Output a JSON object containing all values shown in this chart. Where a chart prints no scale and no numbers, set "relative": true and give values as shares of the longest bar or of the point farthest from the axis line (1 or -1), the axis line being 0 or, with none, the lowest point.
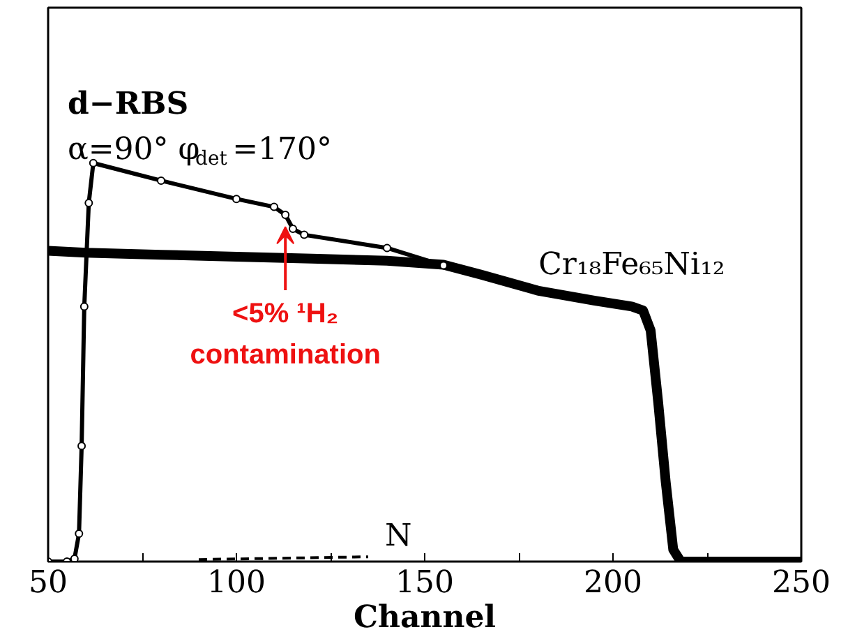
{
  "chart_data": {
    "type": "line",
    "relative": true,
    "xlabel": "Channel",
    "xlim": [
      50,
      250
    ],
    "xticks": [
      50,
      {
        "value": 75,
        "label": null
      },
      100,
      {
        "value": 125,
        "label": null
      },
      150,
      {
        "value": 175,
        "label": null
      },
      200,
      {
        "value": 225,
        "label": null
      },
      250
    ],
    "tick_labels": "x",
    "grid": false,
    "series": [
      {
        "name": "Cr₁₈Fe₆₅Ni₁₂",
        "color": "#000000",
        "line_style": "solid",
        "marker": "none",
        "x": [
          50,
          60,
          80,
          100,
          120,
          140,
          155,
          165,
          180,
          195,
          205,
          208,
          210,
          212,
          214,
          216,
          218,
          250
        ],
        "values": [
          0.78,
          0.775,
          0.77,
          0.765,
          0.76,
          0.755,
          0.745,
          0.72,
          0.68,
          0.655,
          0.64,
          0.63,
          0.58,
          0.4,
          0.2,
          0.03,
          0.0,
          0.0
        ]
      },
      {
        "color": "#000000",
        "line_style": "solid",
        "marker": "circle",
        "x": [
          50,
          55,
          57,
          58.2,
          58.9,
          59.6,
          60.8,
          62,
          80,
          100,
          110,
          113,
          115,
          118,
          140,
          155
        ],
        "values": [
          0.0,
          0.0,
          0.007,
          0.07,
          0.29,
          0.64,
          0.9,
          1.0,
          0.956,
          0.91,
          0.89,
          0.87,
          0.835,
          0.82,
          0.787,
          0.743
        ]
      },
      {
        "name": "N",
        "color": "#000000",
        "line_style": "dashed",
        "marker": "none",
        "x": [
          90,
          135
        ],
        "values": [
          0.005,
          0.012
        ]
      }
    ],
    "annotations": [
      "d−RBS",
      "α=90°  φ$_{det}$=170°",
      {
        "text": "<5% ¹H₂\ncontamination",
        "x": 113,
        "y": 0.87
      }
    ]
  }
}
